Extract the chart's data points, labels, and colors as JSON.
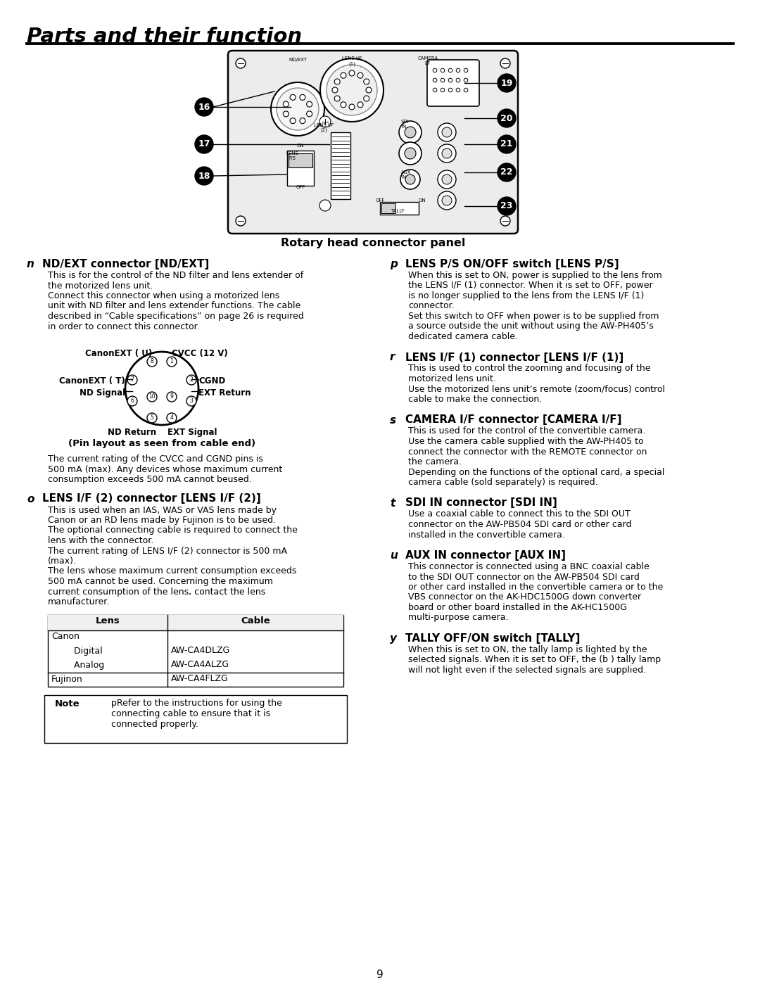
{
  "title": "Parts and their function",
  "page_number": "9",
  "panel_caption": "Rotary head connector panel",
  "section_n_letter": "n",
  "section_n_title": "ND/EXT connector [ND/EXT]",
  "section_n_body": [
    "This is for the control of the ND filter and lens extender of",
    "the motorized lens unit.",
    "Connect this connector when using a motorized lens",
    "unit with ND filter and lens extender functions. The cable",
    "described in “Cable specifications” on page 26 is required",
    "in order to connect this connector."
  ],
  "section_n_body2": [
    "The current rating of the CVCC and CGND pins is",
    "500 mA (max). Any devices whose maximum current",
    "consumption exceeds 500 mA cannot beused."
  ],
  "section_o_letter": "o",
  "section_o_title": "LENS I/F (2) connector [LENS I/F (2)]",
  "section_o_body": [
    "This is used when an IAS, WAS or VAS lens made by",
    "Canon or an RD lens made by Fujinon is to be used.",
    "The optional connecting cable is required to connect the",
    "lens with the connector.",
    "The current rating of LENS I/F (2) connector is 500 mA",
    "(max).",
    "The lens whose maximum current consumption exceeds",
    "500 mA cannot be used. Concerning the maximum",
    "current consumption of the lens, contact the lens",
    "manufacturer."
  ],
  "table_headers": [
    "Lens",
    "Cable"
  ],
  "table_rows": [
    [
      "Canon",
      ""
    ],
    [
      "        Digital",
      "AW-CA4DLZG"
    ],
    [
      "        Analog",
      "AW-CA4ALZG"
    ],
    [
      "Fujinon",
      "AW-CA4FLZG"
    ]
  ],
  "note_label": "Note",
  "note_lines": [
    "pRefer to the instructions for using the",
    "connecting cable to ensure that it is",
    "connected properly."
  ],
  "section_p_letter": "p",
  "section_p_title": "LENS P/S ON/OFF switch [LENS P/S]",
  "section_p_body": [
    "When this is set to ON, power is supplied to the lens from",
    "the LENS I/F (1) connector. When it is set to OFF, power",
    "is no longer supplied to the lens from the LENS I/F (1)",
    "connector.",
    "Set this switch to OFF when power is to be supplied from",
    "a source outside the unit without using the AW-PH405’s",
    "dedicated camera cable."
  ],
  "section_r_letter": "r",
  "section_r_title": "LENS I/F (1) connector [LENS I/F (1)]",
  "section_r_body": [
    "This is used to control the zooming and focusing of the",
    "motorized lens unit.",
    "Use the motorized lens unit’s remote (zoom/focus) control",
    "cable to make the connection."
  ],
  "section_s_letter": "s",
  "section_s_title": "CAMERA I/F connector [CAMERA I/F]",
  "section_s_body": [
    "This is used for the control of the convertible camera.",
    "Use the camera cable supplied with the AW-PH405 to",
    "connect the connector with the REMOTE connector on",
    "the camera.",
    "Depending on the functions of the optional card, a special",
    "camera cable (sold separately) is required."
  ],
  "section_t_letter": "t",
  "section_t_title": "SDI IN connector [SDI IN]",
  "section_t_body": [
    "Use a coaxial cable to connect this to the SDI OUT",
    "connector on the AW-PB504 SDI card or other card",
    "installed in the convertible camera."
  ],
  "section_u_letter": "u",
  "section_u_title": "AUX IN connector [AUX IN]",
  "section_u_body": [
    "This connector is connected using a BNC coaxial cable",
    "to the SDI OUT connector on the AW-PB504 SDI card",
    "or other card installed in the convertible camera or to the",
    "VBS connector on the AK-HDC1500G down converter",
    "board or other board installed in the AK-HC1500G",
    "multi-purpose camera."
  ],
  "section_y_letter": "y",
  "section_y_title": "TALLY OFF/ON switch [TALLY]",
  "section_y_body": [
    "When this is set to ON, the tally lamp is lighted by the",
    "selected signals. When it is set to OFF, the (b ) tally lamp",
    "will not light even if the selected signals are supplied."
  ],
  "bg_color": "#ffffff"
}
